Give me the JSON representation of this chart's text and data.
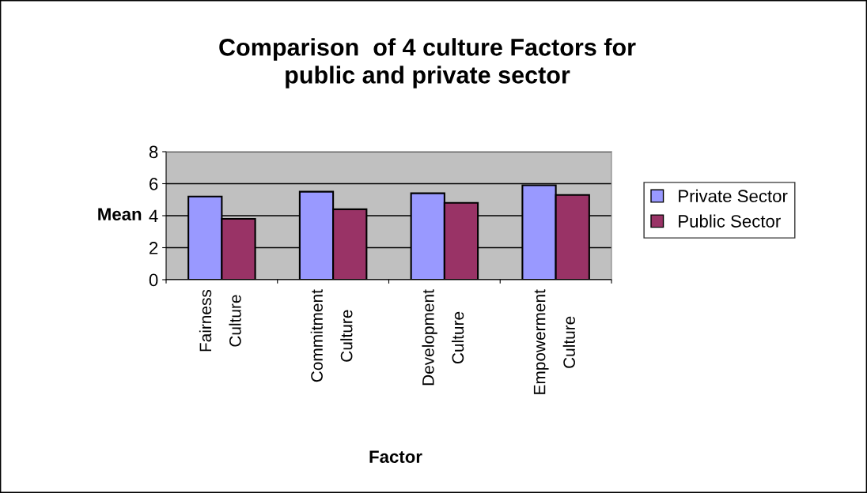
{
  "chart_data": {
    "type": "bar",
    "title": "Comparison  of 4 culture Factors for\npublic and private sector",
    "xlabel": "Factor",
    "ylabel": "Mean",
    "categories": [
      "Fairness\nCulture",
      "Commitment\nCulture",
      "Development\nCulture",
      "Empowerment\nCulture"
    ],
    "series": [
      {
        "name": "Private Sector",
        "color": "#9999ff",
        "values": [
          5.2,
          5.5,
          5.4,
          5.9
        ]
      },
      {
        "name": "Public Sector",
        "color": "#993366",
        "values": [
          3.8,
          4.4,
          4.8,
          5.3
        ]
      }
    ],
    "ylim": [
      0,
      8
    ],
    "yticks": [
      0,
      2,
      4,
      6,
      8
    ],
    "grid": "y",
    "legend": "right"
  }
}
